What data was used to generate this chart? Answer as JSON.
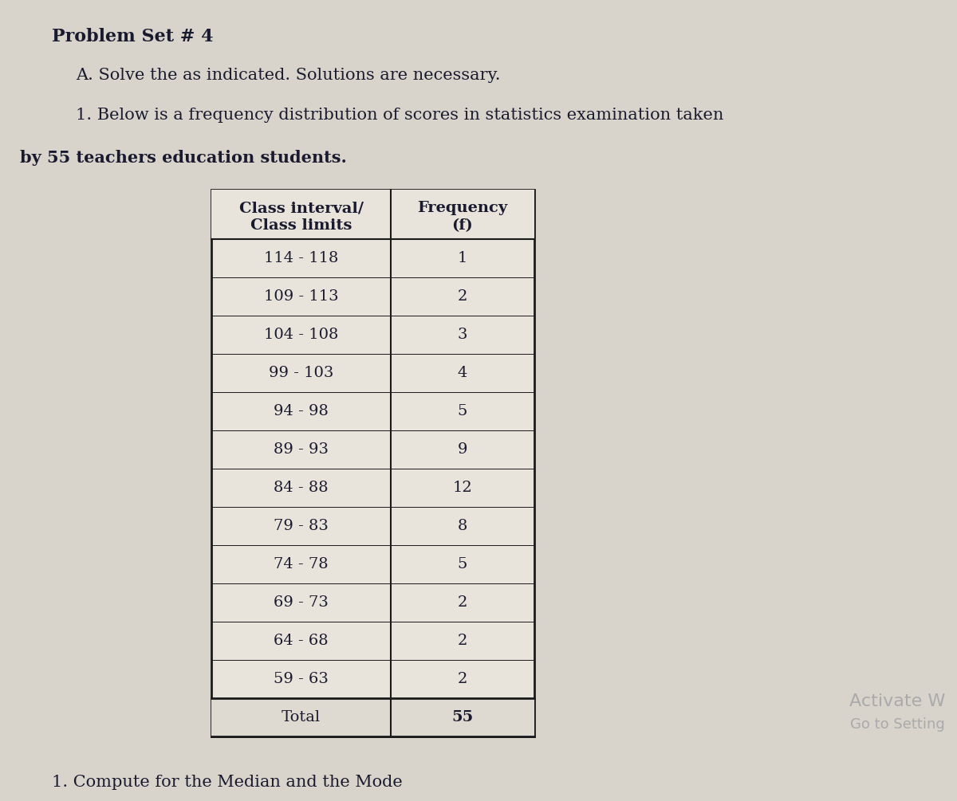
{
  "title": "Problem Set # 4",
  "line_a": "A. Solve the as indicated. Solutions are necessary.",
  "line_1": "1. Below is a frequency distribution of scores in statistics examination taken",
  "line_2": "by 55 teachers education students.",
  "col1_header_line1": "Class interval/",
  "col1_header_line2": "Class limits",
  "col2_header_line1": "Frequency",
  "col2_header_line2": "(f)",
  "rows": [
    [
      "114 - 118",
      "1"
    ],
    [
      "109 - 113",
      "2"
    ],
    [
      "104 - 108",
      "3"
    ],
    [
      "99 - 103",
      "4"
    ],
    [
      "94 - 98",
      "5"
    ],
    [
      "89 - 93",
      "9"
    ],
    [
      "84 - 88",
      "12"
    ],
    [
      "79 - 83",
      "8"
    ],
    [
      "74 - 78",
      "5"
    ],
    [
      "69 - 73",
      "2"
    ],
    [
      "64 - 68",
      "2"
    ],
    [
      "59 - 63",
      "2"
    ]
  ],
  "total_label": "Total",
  "total_value": "55",
  "footer": "1. Compute for the Median and the Mode",
  "watermark_line1": "Activate W",
  "watermark_line2": "Go to Setting",
  "bg_color": "#d8d4cc",
  "table_bg": "#e8e4dc",
  "header_bg": "#e8e4dc",
  "total_row_bg": "#dedad2",
  "text_color": "#1a1a2e",
  "border_color": "#1a1a1a",
  "title_fontsize": 16,
  "body_fontsize": 15,
  "table_fontsize": 14,
  "footer_fontsize": 15,
  "watermark_color": "#aaaaaa"
}
